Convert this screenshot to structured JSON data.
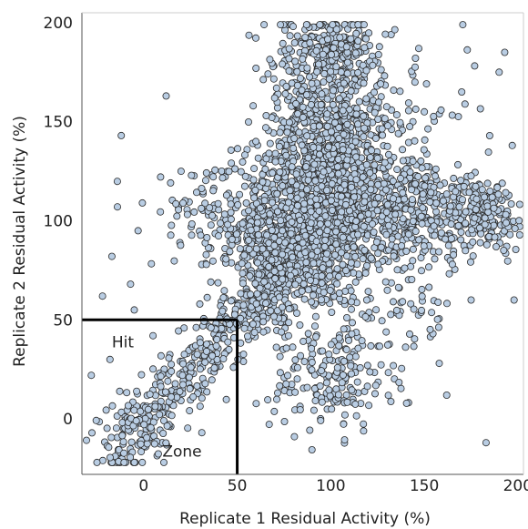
{
  "chart_data": {
    "type": "scatter",
    "xlabel": "Replicate 1 Residual Activity (%)",
    "ylabel": "Replicate 2 Residual Activity (%)",
    "xlim": [
      -33,
      203
    ],
    "ylim": [
      -28,
      205
    ],
    "x_ticks": [
      0,
      50,
      100,
      150,
      200
    ],
    "y_ticks": [
      0,
      50,
      100,
      150,
      200
    ],
    "x_tick_labels": [
      "0",
      "50",
      "100",
      "150",
      "200"
    ],
    "y_tick_labels": [
      "0",
      "50",
      "100",
      "150",
      "200"
    ],
    "grid": false,
    "marker_fill": "#b9cde3",
    "marker_edge": "#2b2b2b",
    "hit_zone": {
      "x_max": 50,
      "y_max": 50,
      "line_color": "#000000"
    },
    "annotations": [
      {
        "text": "Hit",
        "x": -17,
        "y": 36
      },
      {
        "text": "Zone",
        "x": 10,
        "y": -19
      }
    ],
    "clusters": [
      {
        "cx": 88,
        "cy": 100,
        "sx": 18,
        "sy": 22,
        "n": 1100
      },
      {
        "cx": 100,
        "cy": 150,
        "sx": 13,
        "sy": 22,
        "n": 450
      },
      {
        "cx": 103,
        "cy": 188,
        "sx": 9,
        "sy": 7,
        "n": 150
      },
      {
        "cx": 140,
        "cy": 105,
        "sx": 18,
        "sy": 12,
        "n": 350
      },
      {
        "cx": 182,
        "cy": 103,
        "sx": 11,
        "sy": 9,
        "n": 170
      },
      {
        "cx": 100,
        "cy": 20,
        "sx": 16,
        "sy": 14,
        "n": 170
      },
      {
        "cx": 70,
        "cy": 75,
        "sx": 12,
        "sy": 16,
        "n": 230
      },
      {
        "cx": 125,
        "cy": 130,
        "sx": 25,
        "sy": 25,
        "n": 260
      },
      {
        "cx": 40,
        "cy": 100,
        "sx": 18,
        "sy": 12,
        "n": 110
      },
      {
        "cx": 135,
        "cy": 55,
        "sx": 15,
        "sy": 18,
        "n": 70
      },
      {
        "cx": 80,
        "cy": 175,
        "sx": 8,
        "sy": 15,
        "n": 80
      }
    ],
    "diagonal": {
      "x0": -20,
      "x1": 70,
      "n": 420,
      "sigma": 9,
      "jitter_x": 6
    },
    "scatter_points": [
      [
        -28,
        22
      ],
      [
        -17,
        82
      ],
      [
        -14,
        107
      ],
      [
        -12,
        143
      ],
      [
        12,
        163
      ],
      [
        -3,
        95
      ],
      [
        -18,
        30
      ],
      [
        -22,
        62
      ],
      [
        -7,
        68
      ],
      [
        183,
        -12
      ],
      [
        198,
        60
      ],
      [
        193,
        185
      ],
      [
        190,
        175
      ],
      [
        197,
        138
      ],
      [
        162,
        12
      ],
      [
        158,
        28
      ],
      [
        70,
        162
      ],
      [
        60,
        140
      ],
      [
        20,
        125
      ],
      [
        175,
        60
      ],
      [
        165,
        78
      ],
      [
        150,
        155
      ],
      [
        145,
        170
      ],
      [
        170,
        165
      ],
      [
        -5,
        55
      ],
      [
        5,
        42
      ],
      [
        30,
        58
      ]
    ]
  }
}
